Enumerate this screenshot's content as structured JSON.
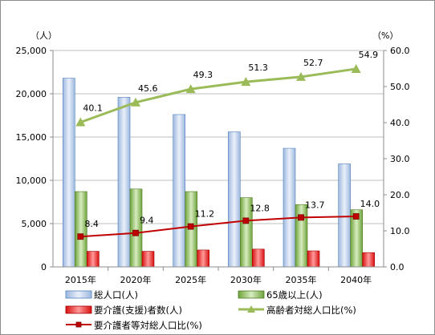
{
  "chart_data": {
    "type": "bar",
    "categories": [
      "2015年",
      "2020年",
      "2025年",
      "2030年",
      "2035年",
      "2040年"
    ],
    "y_left": {
      "unit_label": "（人）",
      "range": [
        0,
        25000
      ],
      "ticks": [
        "0",
        "5,000",
        "10,000",
        "15,000",
        "20,000",
        "25,000"
      ]
    },
    "y_right": {
      "unit_label": "（%）",
      "range": [
        0,
        60
      ],
      "ticks": [
        "0.0",
        "10.0",
        "20.0",
        "30.0",
        "40.0",
        "50.0",
        "60.0"
      ]
    },
    "series": [
      {
        "name": "総人口(人)",
        "type": "bar",
        "axis": "left",
        "color": "#4f81bd",
        "values": [
          21800,
          19600,
          17600,
          15600,
          13700,
          11900
        ]
      },
      {
        "name": "65歳以上(人)",
        "type": "bar",
        "axis": "left",
        "color": "#77a93c",
        "values": [
          8700,
          9000,
          8700,
          8000,
          7200,
          6600
        ]
      },
      {
        "name": "要介護(支援)者数(人)",
        "type": "bar",
        "axis": "left",
        "color": "#e02020",
        "values": [
          1800,
          1800,
          1950,
          2050,
          1850,
          1650
        ]
      },
      {
        "name": "高齢者対総人口比(%)",
        "type": "line",
        "axis": "right",
        "color": "#9bbb59",
        "marker": "triangle",
        "values": [
          40.1,
          45.6,
          49.3,
          51.3,
          52.7,
          54.9
        ],
        "labels": [
          "40.1",
          "45.6",
          "49.3",
          "51.3",
          "52.7",
          "54.9"
        ]
      },
      {
        "name": "要介護者等対総人口比(%)",
        "type": "line",
        "axis": "right",
        "color": "#c00000",
        "marker": "square",
        "values": [
          8.4,
          9.4,
          11.2,
          12.8,
          13.7,
          14.0
        ],
        "labels": [
          "8.4",
          "9.4",
          "11.2",
          "12.8",
          "13.7",
          "14.0"
        ]
      }
    ],
    "grid": true,
    "legend_position": "bottom"
  }
}
